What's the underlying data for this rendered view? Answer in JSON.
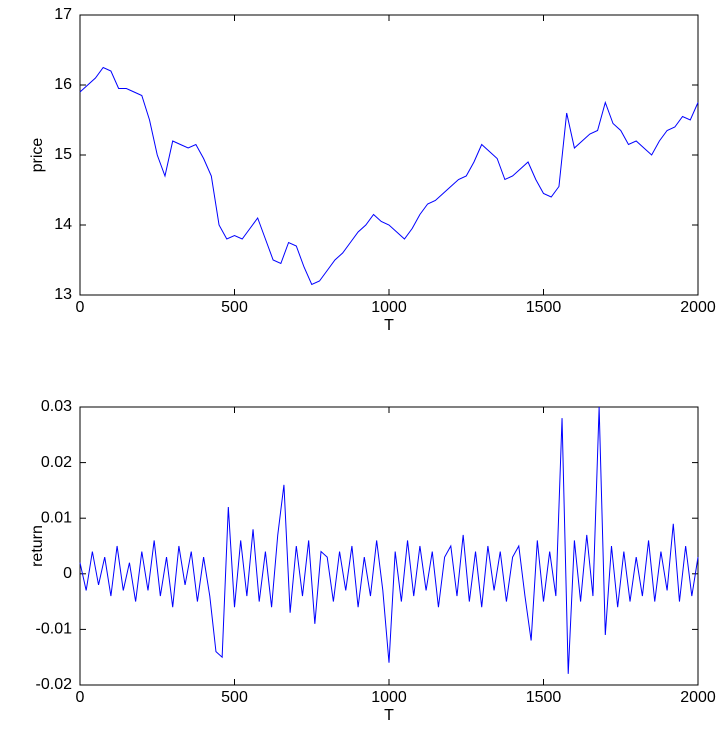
{
  "chart_data": [
    {
      "type": "line",
      "color": "#0000ff",
      "x_label": "T",
      "y_label": "price",
      "x": [
        0,
        25,
        50,
        75,
        100,
        125,
        150,
        175,
        200,
        225,
        250,
        275,
        300,
        325,
        350,
        375,
        400,
        425,
        450,
        475,
        500,
        525,
        550,
        575,
        600,
        625,
        650,
        675,
        700,
        725,
        750,
        775,
        800,
        825,
        850,
        875,
        900,
        925,
        950,
        975,
        1000,
        1025,
        1050,
        1075,
        1100,
        1125,
        1150,
        1175,
        1200,
        1225,
        1250,
        1275,
        1300,
        1325,
        1350,
        1375,
        1400,
        1425,
        1450,
        1475,
        1500,
        1525,
        1550,
        1575,
        1600,
        1625,
        1650,
        1675,
        1700,
        1725,
        1750,
        1775,
        1800,
        1825,
        1850,
        1875,
        1900,
        1925,
        1950,
        1975,
        2000
      ],
      "values": [
        15.9,
        16.0,
        16.1,
        16.25,
        16.2,
        15.95,
        15.95,
        15.9,
        15.85,
        15.5,
        15.0,
        14.7,
        15.2,
        15.15,
        15.1,
        15.15,
        14.95,
        14.7,
        14.0,
        13.8,
        13.85,
        13.8,
        13.95,
        14.1,
        13.8,
        13.5,
        13.45,
        13.75,
        13.7,
        13.4,
        13.15,
        13.2,
        13.35,
        13.5,
        13.6,
        13.75,
        13.9,
        14.0,
        14.15,
        14.05,
        14.0,
        13.9,
        13.8,
        13.95,
        14.15,
        14.3,
        14.35,
        14.45,
        14.55,
        14.65,
        14.7,
        14.9,
        15.15,
        15.05,
        14.95,
        14.65,
        14.7,
        14.8,
        14.9,
        14.65,
        14.45,
        14.4,
        14.55,
        15.6,
        15.1,
        15.2,
        15.3,
        15.35,
        15.75,
        15.45,
        15.35,
        15.15,
        15.2,
        15.1,
        15.0,
        15.2,
        15.35,
        15.4,
        15.55,
        15.5,
        15.75
      ],
      "xlim": [
        0,
        2000
      ],
      "xticks": [
        0,
        500,
        1000,
        1500,
        2000
      ],
      "ylim": [
        13,
        17
      ],
      "yticks": [
        13,
        14,
        15,
        16,
        17
      ]
    },
    {
      "type": "line",
      "color": "#0000ff",
      "x_label": "T",
      "y_label": "return",
      "x": [
        0,
        20,
        40,
        60,
        80,
        100,
        120,
        140,
        160,
        180,
        200,
        220,
        240,
        260,
        280,
        300,
        320,
        340,
        360,
        380,
        400,
        420,
        440,
        460,
        480,
        500,
        520,
        540,
        560,
        580,
        600,
        620,
        640,
        660,
        680,
        700,
        720,
        740,
        760,
        780,
        800,
        820,
        840,
        860,
        880,
        900,
        920,
        940,
        960,
        980,
        1000,
        1020,
        1040,
        1060,
        1080,
        1100,
        1120,
        1140,
        1160,
        1180,
        1200,
        1220,
        1240,
        1260,
        1280,
        1300,
        1320,
        1340,
        1360,
        1380,
        1400,
        1420,
        1440,
        1460,
        1480,
        1500,
        1520,
        1540,
        1560,
        1580,
        1600,
        1620,
        1640,
        1660,
        1680,
        1700,
        1720,
        1740,
        1760,
        1780,
        1800,
        1820,
        1840,
        1860,
        1880,
        1900,
        1920,
        1940,
        1960,
        1980,
        2000
      ],
      "values": [
        0.002,
        -0.003,
        0.004,
        -0.002,
        0.003,
        -0.004,
        0.005,
        -0.003,
        0.002,
        -0.005,
        0.004,
        -0.003,
        0.006,
        -0.004,
        0.003,
        -0.006,
        0.005,
        -0.002,
        0.004,
        -0.005,
        0.003,
        -0.004,
        -0.014,
        -0.015,
        0.012,
        -0.006,
        0.006,
        -0.004,
        0.008,
        -0.005,
        0.004,
        -0.006,
        0.007,
        0.016,
        -0.007,
        0.005,
        -0.004,
        0.006,
        -0.009,
        0.004,
        0.003,
        -0.005,
        0.004,
        -0.003,
        0.005,
        -0.006,
        0.003,
        -0.004,
        0.006,
        -0.003,
        -0.016,
        0.004,
        -0.005,
        0.006,
        -0.004,
        0.005,
        -0.003,
        0.004,
        -0.006,
        0.003,
        0.005,
        -0.004,
        0.007,
        -0.005,
        0.004,
        -0.006,
        0.005,
        -0.003,
        0.004,
        -0.005,
        0.003,
        0.005,
        -0.004,
        -0.012,
        0.006,
        -0.005,
        0.004,
        -0.004,
        0.028,
        -0.018,
        0.006,
        -0.005,
        0.007,
        -0.004,
        0.03,
        -0.011,
        0.005,
        -0.006,
        0.004,
        -0.005,
        0.003,
        -0.004,
        0.006,
        -0.005,
        0.004,
        -0.003,
        0.009,
        -0.005,
        0.005,
        -0.004,
        0.003
      ],
      "xlim": [
        0,
        2000
      ],
      "xticks": [
        0,
        500,
        1000,
        1500,
        2000
      ],
      "ylim": [
        -0.02,
        0.03
      ],
      "yticks": [
        -0.02,
        -0.01,
        0,
        0.01,
        0.02,
        0.03
      ]
    }
  ]
}
